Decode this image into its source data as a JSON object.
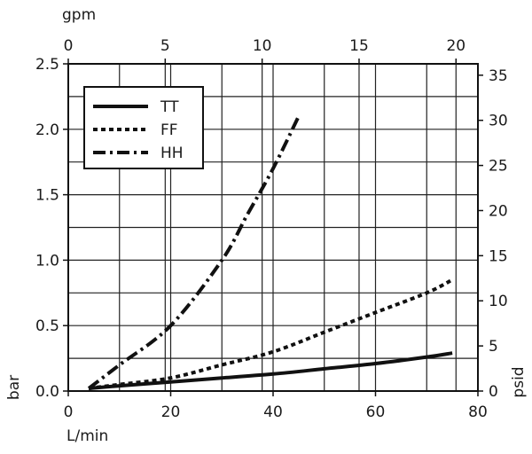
{
  "chart_data": {
    "type": "line",
    "axes": {
      "x_bottom": {
        "label": "L/min",
        "range": [
          0,
          80
        ],
        "ticks": [
          0,
          20,
          40,
          60,
          80
        ]
      },
      "x_top": {
        "label": "gpm",
        "range": [
          0,
          21.13
        ],
        "ticks": [
          0,
          5,
          10,
          15,
          20
        ]
      },
      "y_left": {
        "label": "bar",
        "range": [
          0,
          2.5
        ],
        "ticks": [
          0.0,
          0.5,
          1.0,
          1.5,
          2.0,
          2.5
        ],
        "tick_labels": [
          "0.0",
          "0.5",
          "1.0",
          "1.5",
          "2.0",
          "2.5"
        ]
      },
      "y_right": {
        "label": "psid",
        "range": [
          0,
          36.26
        ],
        "ticks": [
          0,
          5,
          10,
          15,
          20,
          25,
          30,
          35
        ]
      }
    },
    "grid": true,
    "legend_position": "top-left",
    "series": [
      {
        "name": "TT",
        "line_style": "solid",
        "x": [
          4,
          10,
          20,
          30,
          40,
          50,
          60,
          70,
          75
        ],
        "y": [
          0.02,
          0.04,
          0.07,
          0.1,
          0.13,
          0.17,
          0.21,
          0.26,
          0.29
        ]
      },
      {
        "name": "FF",
        "line_style": "dotted",
        "x": [
          4,
          10,
          20,
          30,
          40,
          50,
          60,
          70,
          75
        ],
        "y": [
          0.02,
          0.05,
          0.1,
          0.2,
          0.3,
          0.45,
          0.6,
          0.75,
          0.85
        ]
      },
      {
        "name": "HH",
        "line_style": "dash-dot",
        "x": [
          4,
          10,
          20,
          30,
          35,
          40,
          45
        ],
        "y": [
          0.02,
          0.2,
          0.5,
          1.0,
          1.35,
          1.7,
          2.1
        ]
      }
    ]
  }
}
